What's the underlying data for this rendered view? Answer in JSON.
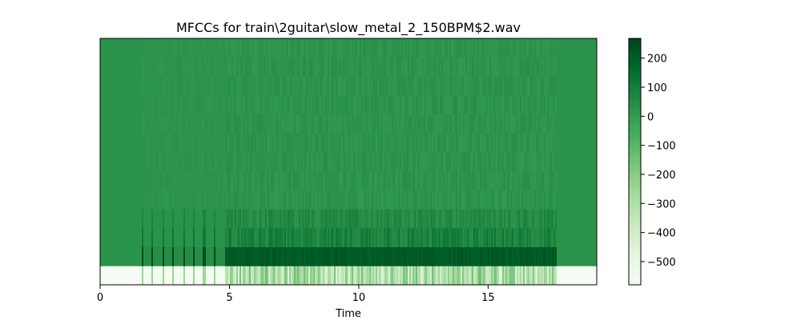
{
  "chart_data": {
    "type": "heatmap",
    "title": "MFCCs for train\\2guitar\\slow_metal_2_150BPM$2.wav",
    "xlabel": "Time",
    "ylabel": "",
    "xlim": [
      0,
      19.2
    ],
    "x_ticks": [
      0,
      5,
      10,
      15
    ],
    "x_tick_labels": [
      "0",
      "5",
      "10",
      "15"
    ],
    "y_ticks_visible": false,
    "n_coefficients": 13,
    "colormap": "Greens",
    "colorbar": {
      "vmin": -580,
      "vmax": 268,
      "ticks": [
        200,
        100,
        0,
        -100,
        -200,
        -300,
        -400,
        -500
      ],
      "tick_labels": [
        "200",
        "100",
        "0",
        "−100",
        "−200",
        "−300",
        "−400",
        "−500"
      ]
    },
    "silence_segments": [
      [
        0,
        1.55
      ],
      [
        17.6,
        19.2
      ]
    ],
    "sound_start": 1.55,
    "sound_end": 17.6,
    "dense_start": 4.8,
    "onset_times": [
      1.6,
      2.0,
      2.4,
      2.8,
      3.2,
      3.6,
      4.0,
      4.4
    ],
    "baseline_values": {
      "silence_row0": -575,
      "silence_other": 30,
      "active_row0": -300,
      "active_row1": 230,
      "active_row2": 85,
      "active_row3": 55,
      "active_upper": 25
    },
    "grid": false,
    "legend": "none"
  },
  "colors": {
    "cmap_low": "#f7fcf5",
    "cmap_mid_low": "#74c476",
    "cmap_mid": "#31a354",
    "cmap_high": "#00441b"
  }
}
